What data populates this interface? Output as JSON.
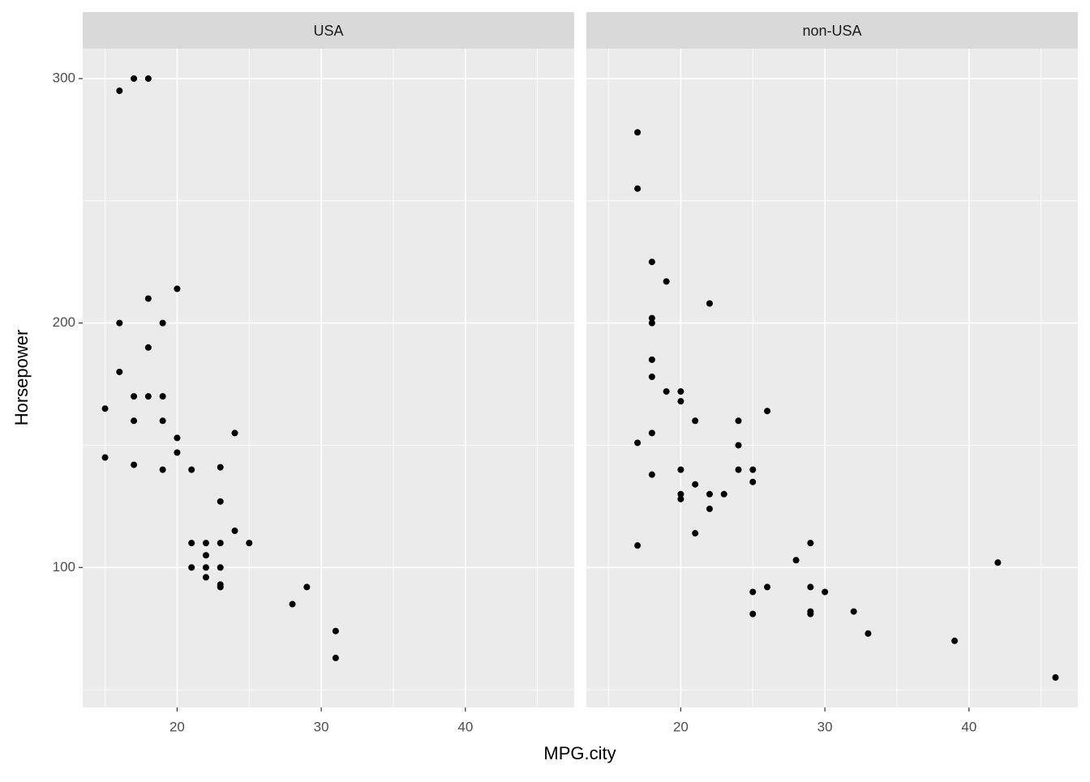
{
  "chart_data": {
    "type": "scatter",
    "layout": "facets",
    "xlabel": "MPG.city",
    "ylabel": "Horsepower",
    "xlim": [
      13.45,
      47.55
    ],
    "ylim": [
      42.75,
      312.25
    ],
    "xticks": [
      20,
      30,
      40
    ],
    "yticks": [
      100,
      200,
      300
    ],
    "x_minor_ticks": [
      15,
      25,
      35,
      45
    ],
    "y_minor_ticks": [
      50,
      150,
      250
    ],
    "grid": true,
    "series": [
      {
        "name": "USA",
        "color": "#000000",
        "x": [
          17,
          18,
          16,
          20,
          18,
          16,
          19,
          18,
          16,
          17,
          18,
          19,
          15,
          17,
          19,
          24,
          20,
          20,
          15,
          17,
          19,
          21,
          23,
          23,
          24,
          21,
          22,
          23,
          25,
          22,
          21,
          22,
          23,
          22,
          23,
          23,
          29,
          28,
          31,
          31
        ],
        "values": [
          300,
          300,
          295,
          214,
          210,
          200,
          200,
          190,
          180,
          170,
          170,
          170,
          165,
          160,
          160,
          155,
          153,
          147,
          145,
          142,
          140,
          140,
          141,
          127,
          115,
          110,
          110,
          110,
          110,
          105,
          100,
          100,
          100,
          96,
          93,
          92,
          92,
          85,
          74,
          63
        ]
      },
      {
        "name": "non-USA",
        "color": "#000000",
        "x": [
          17,
          17,
          18,
          19,
          22,
          18,
          18,
          18,
          18,
          19,
          20,
          20,
          26,
          21,
          24,
          17,
          18,
          24,
          20,
          24,
          25,
          18,
          21,
          25,
          22,
          23,
          20,
          20,
          22,
          21,
          17,
          29,
          28,
          42,
          26,
          29,
          25,
          30,
          32,
          29,
          29,
          25,
          33,
          39,
          46
        ],
        "values": [
          278,
          255,
          225,
          217,
          208,
          202,
          200,
          185,
          178,
          172,
          172,
          168,
          164,
          160,
          160,
          151,
          155,
          150,
          140,
          140,
          140,
          138,
          134,
          135,
          130,
          130,
          130,
          128,
          124,
          114,
          109,
          110,
          103,
          102,
          92,
          92,
          90,
          90,
          82,
          82,
          81,
          81,
          73,
          70,
          55
        ]
      }
    ]
  }
}
